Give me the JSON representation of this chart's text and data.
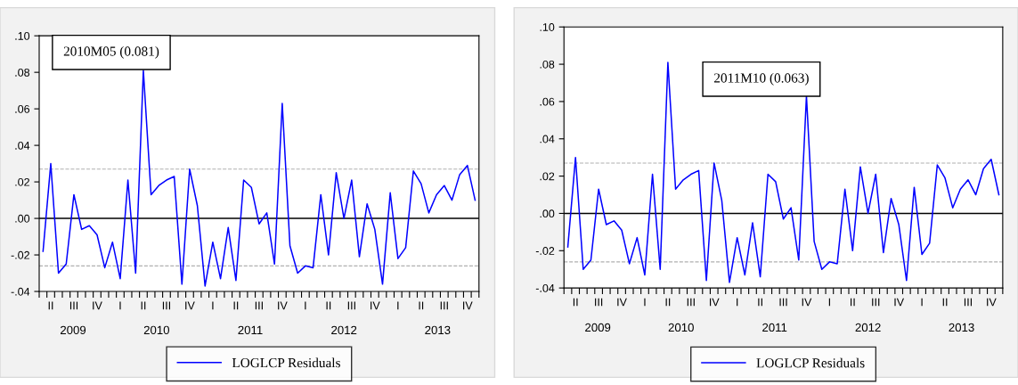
{
  "chart_data": [
    {
      "type": "line",
      "categories": [
        null,
        "II",
        null,
        null,
        "III",
        null,
        null,
        "IV",
        null,
        null,
        "I",
        null,
        null,
        "II",
        null,
        null,
        "III",
        null,
        null,
        "IV",
        null,
        null,
        "I",
        null,
        null,
        "II",
        null,
        null,
        "III",
        null,
        null,
        "IV",
        null,
        null,
        "I",
        null,
        null,
        "II",
        null,
        null,
        "III",
        null,
        null,
        "IV",
        null,
        null,
        "I",
        null,
        null,
        "II",
        null,
        null,
        "III",
        null,
        null,
        "IV",
        null
      ],
      "series": [
        {
          "name": "LOGLCP Residuals",
          "color": "#0000ff",
          "values": [
            -0.018,
            0.03,
            -0.03,
            -0.025,
            0.013,
            -0.006,
            -0.004,
            -0.009,
            -0.027,
            -0.013,
            -0.033,
            0.021,
            -0.03,
            0.081,
            0.013,
            0.018,
            0.021,
            0.023,
            -0.036,
            0.027,
            0.007,
            -0.037,
            -0.013,
            -0.033,
            -0.005,
            -0.034,
            0.021,
            0.017,
            -0.003,
            0.003,
            -0.025,
            0.063,
            -0.015,
            -0.03,
            -0.026,
            -0.027,
            0.013,
            -0.02,
            0.025,
            0.0,
            0.021,
            -0.021,
            0.008,
            -0.006,
            -0.036,
            0.014,
            -0.022,
            -0.016,
            0.026,
            0.019,
            0.003,
            0.013,
            0.018,
            0.01,
            0.024,
            0.029,
            0.01
          ]
        }
      ],
      "ylim": [
        -0.04,
        0.1
      ],
      "yticks": [
        {
          "value": -0.04,
          "label": "-.04"
        },
        {
          "value": -0.02,
          "label": "-.02"
        },
        {
          "value": 0.0,
          "label": ".00"
        },
        {
          "value": 0.02,
          "label": ".02"
        },
        {
          "value": 0.04,
          "label": ".04"
        },
        {
          "value": 0.06,
          "label": ".06"
        },
        {
          "value": 0.08,
          "label": ".08"
        },
        {
          "value": 0.1,
          "label": ".10"
        }
      ],
      "ref_lines": [
        {
          "axis": "y",
          "value": 0.0,
          "color": "#000000",
          "line_style": "solid"
        },
        {
          "axis": "y",
          "value": 0.027,
          "color": "#b0b0b0",
          "line_style": "dashed"
        },
        {
          "axis": "y",
          "value": -0.026,
          "color": "#b0b0b0",
          "line_style": "dashed"
        }
      ],
      "annotations": [
        "2010M05 (0.081)",
        "2009",
        "2010",
        "2011",
        "2012",
        "2013"
      ],
      "legend": "bottom",
      "grid": false,
      "marker": "none",
      "line_style": "solid"
    },
    {
      "type": "line",
      "categories": [
        null,
        "II",
        null,
        null,
        "III",
        null,
        null,
        "IV",
        null,
        null,
        "I",
        null,
        null,
        "II",
        null,
        null,
        "III",
        null,
        null,
        "IV",
        null,
        null,
        "I",
        null,
        null,
        "II",
        null,
        null,
        "III",
        null,
        null,
        "IV",
        null,
        null,
        "I",
        null,
        null,
        "II",
        null,
        null,
        "III",
        null,
        null,
        "IV",
        null,
        null,
        "I",
        null,
        null,
        "II",
        null,
        null,
        "III",
        null,
        null,
        "IV",
        null
      ],
      "series": [
        {
          "name": "LOGLCP Residuals",
          "color": "#0000ff",
          "values": [
            -0.018,
            0.03,
            -0.03,
            -0.025,
            0.013,
            -0.006,
            -0.004,
            -0.009,
            -0.027,
            -0.013,
            -0.033,
            0.021,
            -0.03,
            0.081,
            0.013,
            0.018,
            0.021,
            0.023,
            -0.036,
            0.027,
            0.007,
            -0.037,
            -0.013,
            -0.033,
            -0.005,
            -0.034,
            0.021,
            0.017,
            -0.003,
            0.003,
            -0.025,
            0.063,
            -0.015,
            -0.03,
            -0.026,
            -0.027,
            0.013,
            -0.02,
            0.025,
            0.0,
            0.021,
            -0.021,
            0.008,
            -0.006,
            -0.036,
            0.014,
            -0.022,
            -0.016,
            0.026,
            0.019,
            0.003,
            0.013,
            0.018,
            0.01,
            0.024,
            0.029,
            0.01
          ]
        }
      ],
      "ylim": [
        -0.04,
        0.1
      ],
      "yticks": [
        {
          "value": -0.04,
          "label": "-.04"
        },
        {
          "value": -0.02,
          "label": "-.02"
        },
        {
          "value": 0.0,
          "label": ".00"
        },
        {
          "value": 0.02,
          "label": ".02"
        },
        {
          "value": 0.04,
          "label": ".04"
        },
        {
          "value": 0.06,
          "label": ".06"
        },
        {
          "value": 0.08,
          "label": ".08"
        },
        {
          "value": 0.1,
          "label": ".10"
        }
      ],
      "ref_lines": [
        {
          "axis": "y",
          "value": 0.0,
          "color": "#000000",
          "line_style": "solid"
        },
        {
          "axis": "y",
          "value": 0.027,
          "color": "#b0b0b0",
          "line_style": "dashed"
        },
        {
          "axis": "y",
          "value": -0.026,
          "color": "#b0b0b0",
          "line_style": "dashed"
        }
      ],
      "annotations": [
        "2011M10 (0.063)",
        "2009",
        "2010",
        "2011",
        "2012",
        "2013"
      ],
      "legend": "bottom",
      "grid": false,
      "marker": "none",
      "line_style": "solid"
    }
  ]
}
